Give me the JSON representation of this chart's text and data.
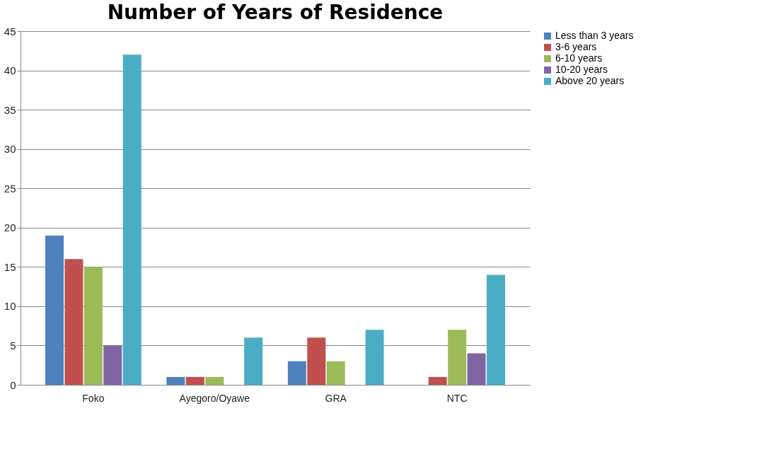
{
  "chart_data": {
    "type": "bar",
    "title": "Number of Years of Residence",
    "categories": [
      "Foko",
      "Ayegoro/Oyawe",
      "GRA",
      "NTC"
    ],
    "series": [
      {
        "name": "Less than 3 years",
        "color": "#4f81bd",
        "values": [
          19,
          1,
          3,
          0
        ]
      },
      {
        "name": "3-6 years",
        "color": "#c0504d",
        "values": [
          16,
          1,
          6,
          1
        ]
      },
      {
        "name": "6-10 years",
        "color": "#9bbb59",
        "values": [
          15,
          1,
          3,
          7
        ]
      },
      {
        "name": "10-20 years",
        "color": "#8064a2",
        "values": [
          5,
          0,
          0,
          4
        ]
      },
      {
        "name": "Above 20 years",
        "color": "#4bacc6",
        "values": [
          42,
          6,
          7,
          14
        ]
      }
    ],
    "ylim": [
      0,
      45
    ],
    "yticks": [
      0,
      5,
      10,
      15,
      20,
      25,
      30,
      35,
      40,
      45
    ],
    "grid": "y",
    "legend": "right"
  }
}
